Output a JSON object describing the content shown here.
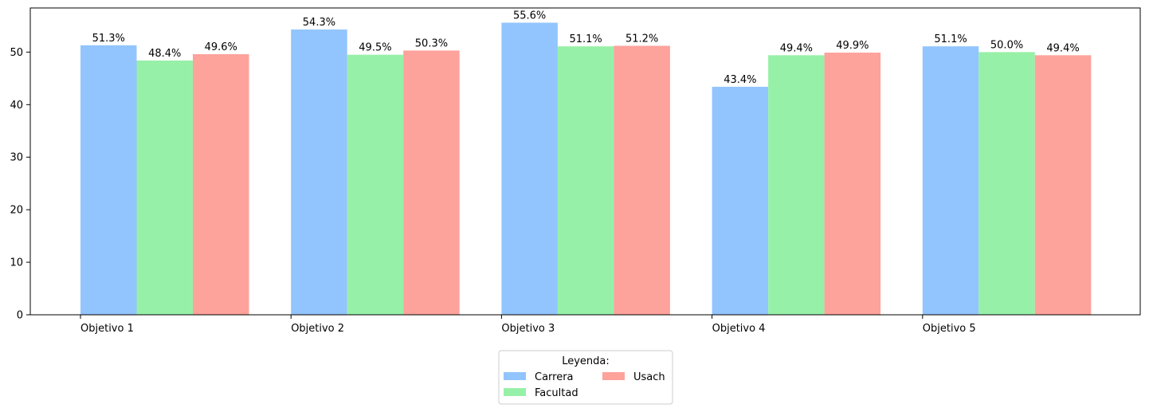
{
  "chart_data": {
    "type": "bar",
    "categories": [
      "Objetivo 1",
      "Objetivo 2",
      "Objetivo 3",
      "Objetivo 4",
      "Objetivo 5"
    ],
    "series": [
      {
        "name": "Carrera",
        "color": "#92c5fd",
        "values": [
          51.3,
          54.3,
          55.6,
          43.4,
          51.1
        ],
        "labels": [
          "51.3%",
          "54.3%",
          "55.6%",
          "43.4%",
          "51.1%"
        ]
      },
      {
        "name": "Facultad",
        "color": "#97f0a8",
        "values": [
          48.4,
          49.5,
          51.1,
          49.4,
          50.0
        ],
        "labels": [
          "48.4%",
          "49.5%",
          "51.1%",
          "49.4%",
          "50.0%"
        ]
      },
      {
        "name": "Usach",
        "color": "#fea29c",
        "values": [
          49.6,
          50.3,
          51.2,
          49.9,
          49.4
        ],
        "labels": [
          "49.6%",
          "50.3%",
          "51.2%",
          "49.9%",
          "49.4%"
        ]
      }
    ],
    "ylim": [
      0,
      58.4
    ],
    "yticks": [
      0,
      10,
      20,
      30,
      40,
      50
    ],
    "grid": false,
    "legend": {
      "title": "Leyenda:",
      "placement": "bottom-center",
      "columns": 2
    }
  }
}
